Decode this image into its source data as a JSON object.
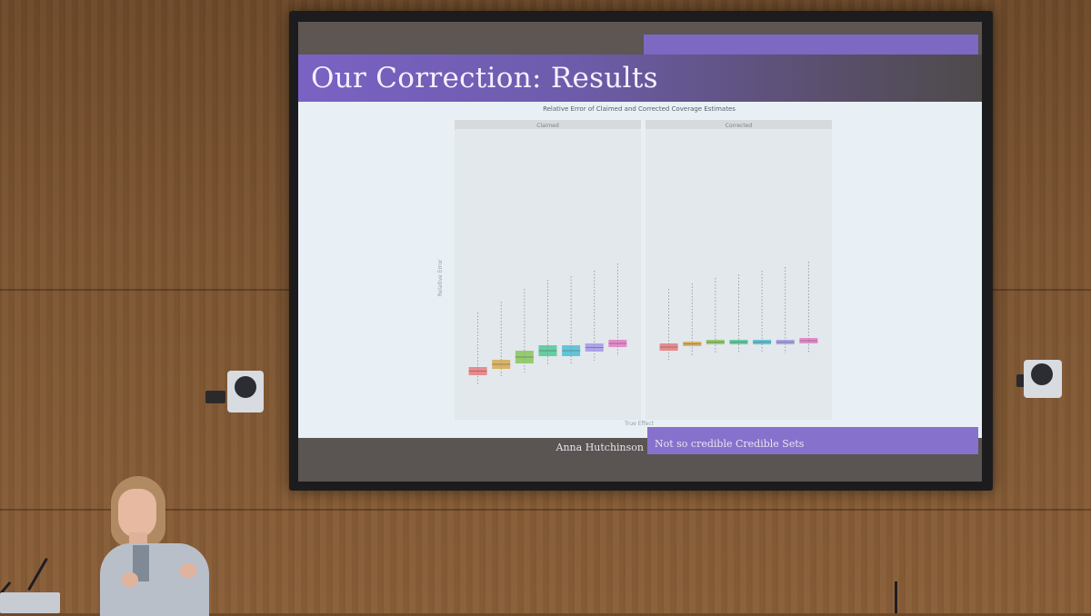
{
  "slide": {
    "title": "Our Correction: Results",
    "footer_author": "Anna Hutchinson",
    "footer_talk": "Not so credible Credible Sets"
  },
  "chart_data": {
    "type": "box",
    "title": "Relative Error of Claimed and Corrected Coverage Estimates",
    "panels": [
      "Claimed",
      "Corrected"
    ],
    "ylabel": "Relative Error",
    "xlabel": "True Effect",
    "colors": [
      "#e86c6c",
      "#d6a23c",
      "#7cc04a",
      "#3cc48a",
      "#3ab8d0",
      "#9a8ee6",
      "#e36cc0"
    ],
    "groups": 7
  }
}
